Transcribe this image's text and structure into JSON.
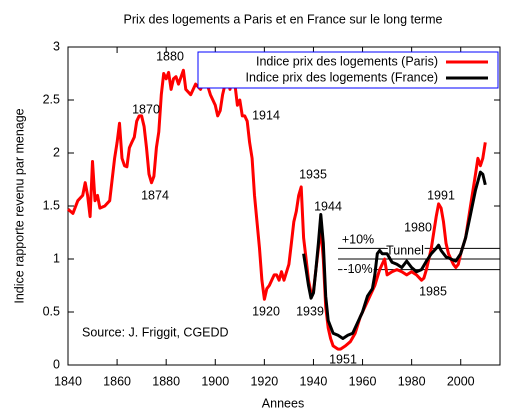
{
  "chart_data": {
    "type": "line",
    "title": "Prix des logements a Paris et en France sur le long terme",
    "xlabel": "Annees",
    "ylabel": "Indice rapporte revenu par menage",
    "source": "Source: J. Friggit, CGEDD",
    "xlim": [
      1840,
      2016
    ],
    "xticks": [
      1840,
      1860,
      1880,
      1900,
      1920,
      1940,
      1960,
      1980,
      2000
    ],
    "ylim": [
      0,
      3
    ],
    "yticks": [
      0,
      0.5,
      1,
      1.5,
      2,
      2.5,
      3
    ],
    "grid": false,
    "legend": "top-right",
    "series": [
      {
        "name": "Indice prix des logements (Paris)",
        "color": "#ff0000",
        "x": [
          1840,
          1842,
          1844,
          1846,
          1847,
          1848,
          1849,
          1850,
          1851,
          1852,
          1853,
          1855,
          1857,
          1859,
          1860,
          1861,
          1862,
          1863,
          1864,
          1865,
          1866,
          1867,
          1868,
          1869,
          1870,
          1871,
          1872,
          1873,
          1874,
          1875,
          1876,
          1877,
          1878,
          1879,
          1880,
          1881,
          1882,
          1883,
          1884,
          1885,
          1887,
          1888,
          1890,
          1892,
          1894,
          1896,
          1898,
          1900,
          1901,
          1902,
          1903,
          1904,
          1905,
          1906,
          1907,
          1908,
          1909,
          1910,
          1911,
          1912,
          1913,
          1914,
          1915,
          1916,
          1917,
          1918,
          1919,
          1920,
          1921,
          1922,
          1923,
          1924,
          1925,
          1926,
          1927,
          1928,
          1930,
          1931,
          1932,
          1933,
          1934,
          1935,
          1936,
          1937,
          1938,
          1939,
          1940,
          1941,
          1942,
          1943,
          1944,
          1945,
          1946,
          1947,
          1948,
          1950,
          1951,
          1953,
          1955,
          1957,
          1959,
          1961,
          1963,
          1965,
          1967,
          1969,
          1970,
          1972,
          1974,
          1976,
          1978,
          1980,
          1982,
          1984,
          1985,
          1986,
          1988,
          1990,
          1991,
          1992,
          1993,
          1994,
          1995,
          1996,
          1997,
          1998,
          1999,
          2000,
          2002,
          2004,
          2006,
          2007,
          2008,
          2009,
          2010
        ],
        "values": [
          1.47,
          1.43,
          1.55,
          1.6,
          1.72,
          1.6,
          1.4,
          1.92,
          1.55,
          1.6,
          1.48,
          1.5,
          1.55,
          1.95,
          2.1,
          2.28,
          1.95,
          1.88,
          1.87,
          2.05,
          2.1,
          2.15,
          2.3,
          2.35,
          2.35,
          2.25,
          2.05,
          1.8,
          1.72,
          1.78,
          2.05,
          2.2,
          2.55,
          2.75,
          2.7,
          2.76,
          2.6,
          2.7,
          2.72,
          2.65,
          2.78,
          2.6,
          2.55,
          2.65,
          2.6,
          2.7,
          2.55,
          2.45,
          2.35,
          2.4,
          2.55,
          2.65,
          2.7,
          2.6,
          2.75,
          2.65,
          2.45,
          2.5,
          2.35,
          2.35,
          2.3,
          2.1,
          1.95,
          1.6,
          1.35,
          1.1,
          0.8,
          0.62,
          0.72,
          0.75,
          0.8,
          0.85,
          0.85,
          0.8,
          0.88,
          0.8,
          0.95,
          1.15,
          1.35,
          1.45,
          1.6,
          1.68,
          1.2,
          1.0,
          0.8,
          0.68,
          0.7,
          0.9,
          1.1,
          1.3,
          1.0,
          0.55,
          0.35,
          0.25,
          0.18,
          0.15,
          0.15,
          0.18,
          0.22,
          0.3,
          0.45,
          0.55,
          0.65,
          0.75,
          0.9,
          1.0,
          0.85,
          0.88,
          0.9,
          0.88,
          0.85,
          0.88,
          0.85,
          0.8,
          0.82,
          0.9,
          1.1,
          1.4,
          1.52,
          1.48,
          1.35,
          1.15,
          1.05,
          1.0,
          0.95,
          0.92,
          0.95,
          1.05,
          1.2,
          1.5,
          1.8,
          1.95,
          1.88,
          1.95,
          2.1
        ]
      },
      {
        "name": "Indice prix des logements (France)",
        "color": "#000000",
        "x": [
          1936,
          1937,
          1938,
          1939,
          1940,
          1941,
          1942,
          1943,
          1944,
          1945,
          1946,
          1948,
          1950,
          1952,
          1954,
          1956,
          1958,
          1960,
          1962,
          1964,
          1965,
          1966,
          1967,
          1968,
          1970,
          1972,
          1974,
          1976,
          1978,
          1980,
          1982,
          1984,
          1986,
          1988,
          1990,
          1991,
          1992,
          1994,
          1996,
          1998,
          2000,
          2002,
          2004,
          2006,
          2008,
          2009,
          2010
        ],
        "values": [
          1.05,
          0.9,
          0.75,
          0.63,
          0.68,
          0.9,
          1.15,
          1.42,
          1.15,
          0.65,
          0.42,
          0.3,
          0.28,
          0.25,
          0.28,
          0.3,
          0.4,
          0.5,
          0.65,
          0.72,
          0.85,
          1.05,
          1.08,
          1.05,
          1.05,
          0.97,
          0.95,
          0.92,
          0.98,
          0.92,
          0.88,
          0.9,
          0.98,
          1.05,
          1.1,
          1.13,
          1.08,
          1.02,
          1.0,
          0.98,
          1.05,
          1.2,
          1.42,
          1.65,
          1.82,
          1.8,
          1.7
        ]
      }
    ],
    "reference_start": 1950,
    "reference_lines": [
      {
        "value": 1.1,
        "label": "+10%"
      },
      {
        "value": 1,
        "label": "Tunnel"
      },
      {
        "value": 0.9,
        "label": "-10%"
      }
    ],
    "annotations": [
      "1880",
      "1870",
      "1914",
      "1874",
      "1935",
      "1944",
      "1920",
      "1939",
      "1951",
      "1991",
      "1980",
      "1985"
    ]
  }
}
